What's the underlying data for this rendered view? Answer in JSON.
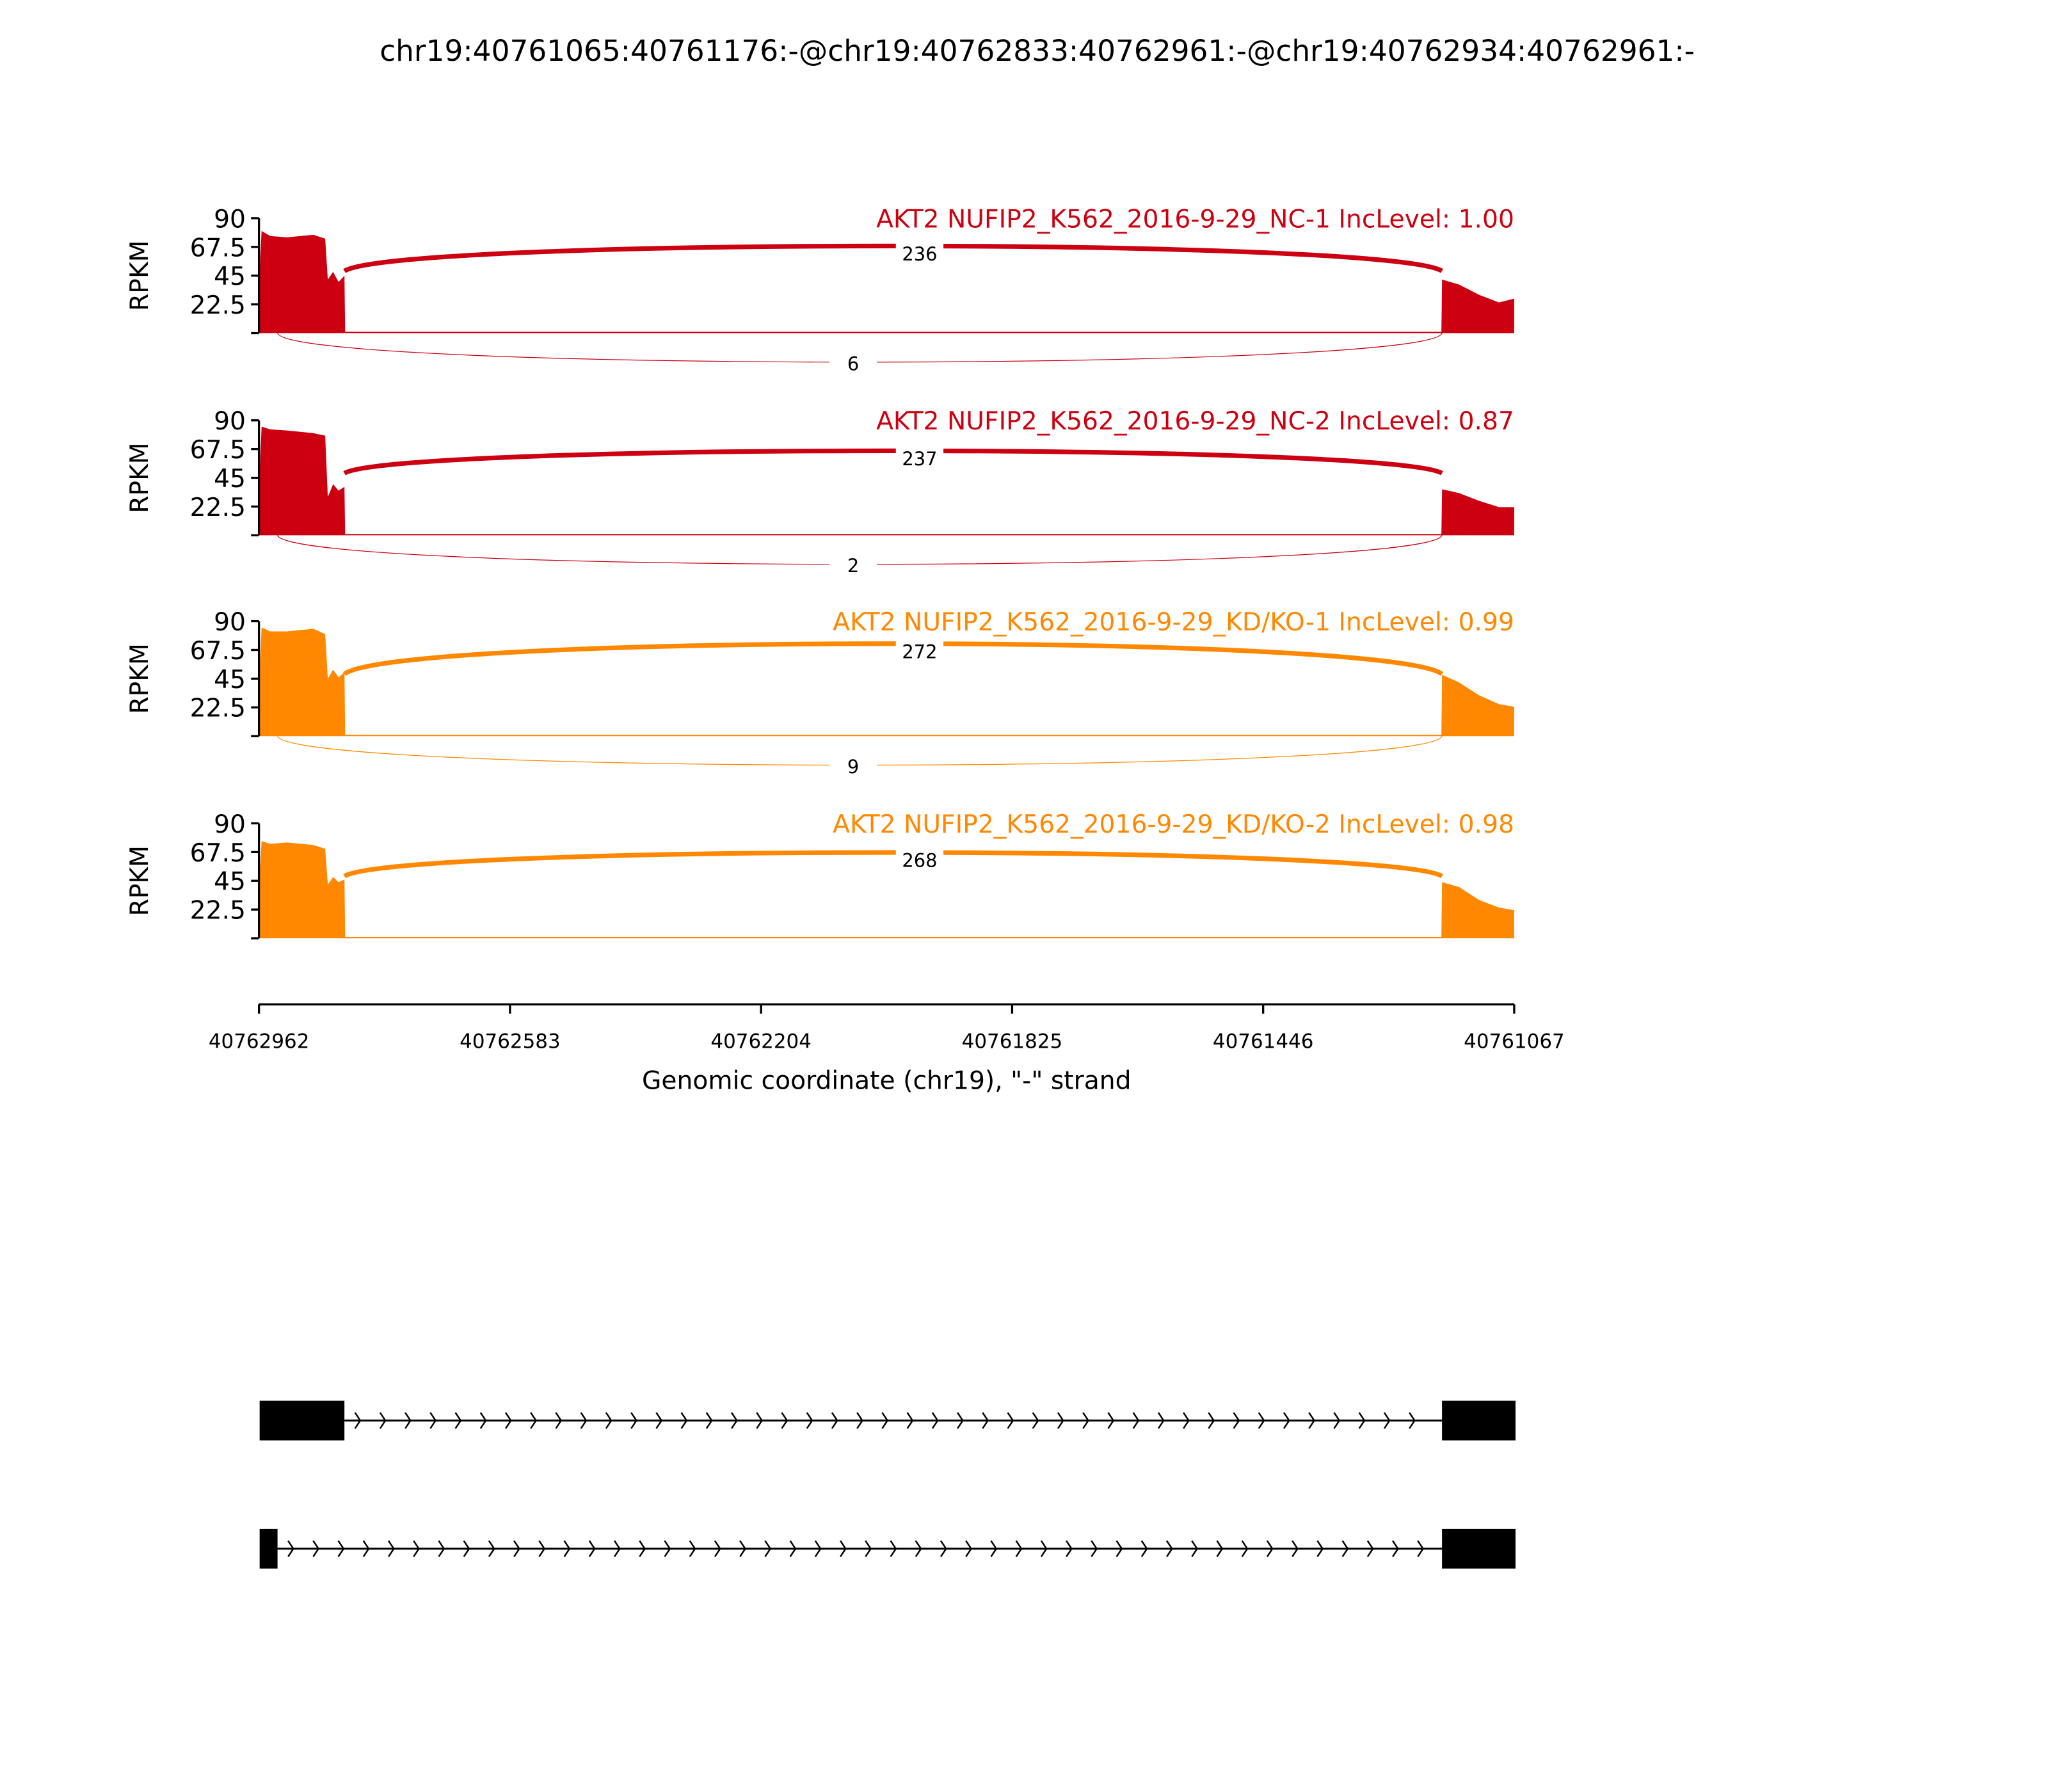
{
  "title": "chr19:40761065:40761176:-@chr19:40762833:40762961:-@chr19:40762934:40762961:-",
  "chart_data": {
    "type": "area",
    "subtype": "sashimi",
    "xlabel": "Genomic coordinate (chr19), \"-\" strand",
    "ylabel": "RPKM",
    "xlim": [
      40762962,
      40761067
    ],
    "x_reversed": true,
    "xticks": [
      "40762962",
      "40762583",
      "40762204",
      "40761825",
      "40761446",
      "40761067"
    ],
    "ylim": [
      0,
      90
    ],
    "yticks": [
      "90",
      "67.5",
      "45",
      "22.5"
    ],
    "colors": {
      "NC": "#cc0011",
      "KD": "#ff8800"
    },
    "panels": [
      {
        "label": "AKT2 NUFIP2_K562_2016-9-29_NC-1 IncLevel: 1.00",
        "color": "#cc0011",
        "coverage": [
          [
            40762962,
            40
          ],
          [
            40762958,
            80
          ],
          [
            40762945,
            76
          ],
          [
            40762920,
            75
          ],
          [
            40762880,
            77
          ],
          [
            40762862,
            74
          ],
          [
            40762858,
            42
          ],
          [
            40762850,
            48
          ],
          [
            40762842,
            40
          ],
          [
            40762833,
            45
          ],
          [
            40762832,
            1
          ],
          [
            40761177,
            1
          ],
          [
            40761176,
            42
          ],
          [
            40761150,
            38
          ],
          [
            40761120,
            30
          ],
          [
            40761090,
            24
          ],
          [
            40761067,
            27
          ]
        ],
        "junctions": [
          {
            "from": 40762833,
            "to": 40761176,
            "count": "236",
            "side": "above"
          },
          {
            "from": 40762934,
            "to": 40761176,
            "count": "6",
            "side": "below"
          }
        ]
      },
      {
        "label": "AKT2 NUFIP2_K562_2016-9-29_NC-2 IncLevel: 0.87",
        "color": "#cc0011",
        "coverage": [
          [
            40762962,
            40
          ],
          [
            40762958,
            85
          ],
          [
            40762945,
            83
          ],
          [
            40762920,
            82
          ],
          [
            40762880,
            80
          ],
          [
            40762862,
            78
          ],
          [
            40762858,
            30
          ],
          [
            40762850,
            40
          ],
          [
            40762842,
            35
          ],
          [
            40762833,
            38
          ],
          [
            40762832,
            1
          ],
          [
            40761177,
            1
          ],
          [
            40761176,
            36
          ],
          [
            40761150,
            33
          ],
          [
            40761120,
            27
          ],
          [
            40761090,
            22
          ],
          [
            40761067,
            22
          ]
        ],
        "junctions": [
          {
            "from": 40762833,
            "to": 40761176,
            "count": "237",
            "side": "above"
          },
          {
            "from": 40762934,
            "to": 40761176,
            "count": "2",
            "side": "below"
          }
        ]
      },
      {
        "label": "AKT2 NUFIP2_K562_2016-9-29_KD/KO-1 IncLevel: 0.99",
        "color": "#ff8800",
        "coverage": [
          [
            40762962,
            40
          ],
          [
            40762958,
            85
          ],
          [
            40762945,
            82
          ],
          [
            40762920,
            82
          ],
          [
            40762880,
            84
          ],
          [
            40762862,
            80
          ],
          [
            40762858,
            45
          ],
          [
            40762850,
            52
          ],
          [
            40762842,
            46
          ],
          [
            40762833,
            50
          ],
          [
            40762832,
            1
          ],
          [
            40761177,
            1
          ],
          [
            40761176,
            48
          ],
          [
            40761150,
            42
          ],
          [
            40761120,
            32
          ],
          [
            40761090,
            25
          ],
          [
            40761067,
            23
          ]
        ],
        "junctions": [
          {
            "from": 40762833,
            "to": 40761176,
            "count": "272",
            "side": "above"
          },
          {
            "from": 40762934,
            "to": 40761176,
            "count": "9",
            "side": "below"
          }
        ]
      },
      {
        "label": "AKT2 NUFIP2_K562_2016-9-29_KD/KO-2 IncLevel: 0.98",
        "color": "#ff8800",
        "coverage": [
          [
            40762962,
            40
          ],
          [
            40762958,
            76
          ],
          [
            40762945,
            74
          ],
          [
            40762920,
            75
          ],
          [
            40762880,
            73
          ],
          [
            40762862,
            70
          ],
          [
            40762858,
            42
          ],
          [
            40762850,
            48
          ],
          [
            40762842,
            44
          ],
          [
            40762833,
            46
          ],
          [
            40762832,
            1
          ],
          [
            40761177,
            1
          ],
          [
            40761176,
            44
          ],
          [
            40761150,
            40
          ],
          [
            40761120,
            30
          ],
          [
            40761090,
            24
          ],
          [
            40761067,
            22
          ]
        ],
        "junctions": [
          {
            "from": 40762833,
            "to": 40761176,
            "count": "268",
            "side": "above"
          }
        ]
      }
    ],
    "transcripts": [
      {
        "exons": [
          [
            40762961,
            40762833
          ],
          [
            40761176,
            40761065
          ]
        ]
      },
      {
        "exons": [
          [
            40762961,
            40762934
          ],
          [
            40761176,
            40761065
          ]
        ]
      }
    ]
  }
}
